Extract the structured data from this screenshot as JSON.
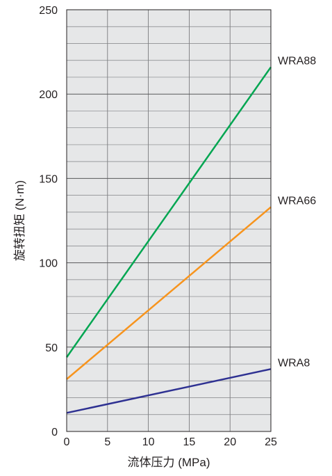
{
  "chart_data": {
    "type": "line",
    "xlabel": "流体压力 (MPa)",
    "ylabel": "旋转扭矩 (N·m)",
    "xlim": [
      0,
      25
    ],
    "ylim": [
      0,
      250
    ],
    "x_ticks": [
      "0",
      "5",
      "10",
      "15",
      "20",
      "25"
    ],
    "y_ticks": [
      "0",
      "50",
      "100",
      "150",
      "200",
      "250"
    ],
    "grid": true,
    "series": [
      {
        "name": "WRA88",
        "color": "#00a651",
        "x": [
          0,
          25
        ],
        "y": [
          44,
          216
        ]
      },
      {
        "name": "WRA66",
        "color": "#f7941d",
        "x": [
          0,
          25
        ],
        "y": [
          31,
          133
        ]
      },
      {
        "name": "WRA8",
        "color": "#2e3192",
        "x": [
          0,
          25
        ],
        "y": [
          11,
          37
        ]
      }
    ]
  }
}
